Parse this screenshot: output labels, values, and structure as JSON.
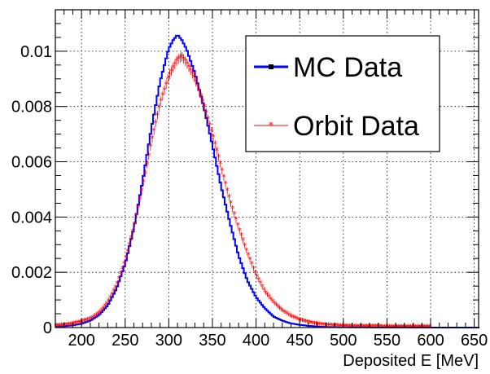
{
  "chart_data": {
    "type": "line",
    "title": "",
    "xlabel": "Deposited E [MeV]",
    "ylabel": "",
    "xlim": [
      170,
      655
    ],
    "ylim": [
      0,
      0.0115
    ],
    "grid": true,
    "legend_placement": "top-right",
    "x_tick_labels": [
      "200",
      "250",
      "300",
      "350",
      "400",
      "450",
      "500",
      "550",
      "600",
      "650"
    ],
    "y_tick_labels": [
      "0",
      "0.002",
      "0.004",
      "0.006",
      "0.008",
      "0.01"
    ],
    "series": [
      {
        "name": "MC Data",
        "color": "#0000ff",
        "style": "step",
        "x": [
          170,
          180,
          190,
          200,
          210,
          220,
          230,
          240,
          250,
          260,
          270,
          280,
          290,
          300,
          305,
          310,
          315,
          320,
          330,
          340,
          350,
          360,
          370,
          380,
          390,
          400,
          410,
          420,
          430,
          440,
          450,
          460,
          470,
          480,
          500,
          550,
          600,
          650
        ],
        "y": [
          3e-05,
          5e-05,
          8e-05,
          0.00014,
          0.00025,
          0.00045,
          0.0008,
          0.0014,
          0.0023,
          0.0036,
          0.0053,
          0.0072,
          0.0089,
          0.0101,
          0.0104,
          0.0106,
          0.0104,
          0.0101,
          0.0092,
          0.008,
          0.0066,
          0.0051,
          0.0038,
          0.0026,
          0.0017,
          0.0011,
          0.0007,
          0.0004,
          0.00025,
          0.00015,
          0.0001,
          6e-05,
          4e-05,
          2e-05,
          1e-05,
          3e-06,
          1e-06,
          0
        ]
      },
      {
        "name": "Orbit Data",
        "color": "#ff0000",
        "style": "markers",
        "x": [
          170,
          180,
          190,
          200,
          210,
          220,
          230,
          240,
          250,
          260,
          270,
          280,
          290,
          300,
          310,
          315,
          320,
          330,
          340,
          350,
          360,
          370,
          380,
          390,
          400,
          410,
          420,
          430,
          440,
          450,
          460,
          470,
          480,
          490,
          500,
          520,
          550,
          580,
          600
        ],
        "y": [
          5e-05,
          8e-05,
          0.00012,
          0.0002,
          0.0003,
          0.0005,
          0.0009,
          0.0015,
          0.0024,
          0.0036,
          0.0051,
          0.0067,
          0.0081,
          0.0091,
          0.0097,
          0.0098,
          0.0096,
          0.009,
          0.0081,
          0.007,
          0.0058,
          0.0046,
          0.0036,
          0.0027,
          0.0019,
          0.0013,
          0.0009,
          0.0006,
          0.0004,
          0.00027,
          0.00018,
          0.00012,
          8e-05,
          6e-05,
          4e-05,
          3e-05,
          2e-05,
          1e-05,
          1e-05
        ]
      }
    ]
  }
}
